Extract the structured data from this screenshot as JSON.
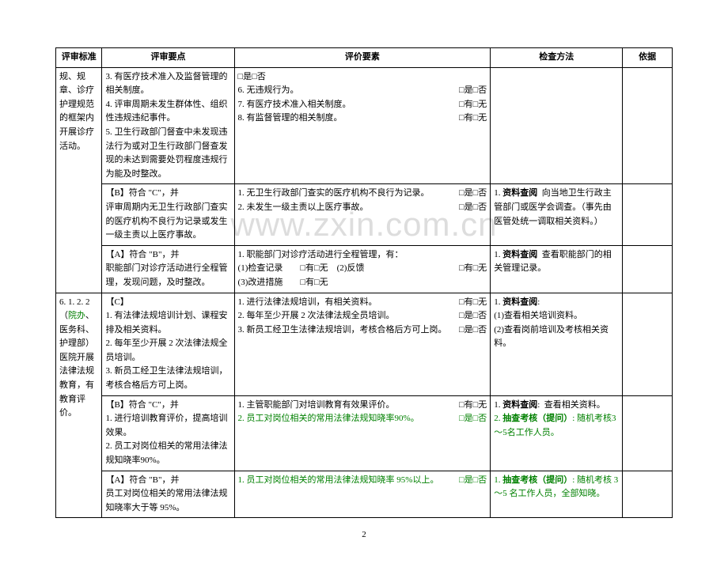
{
  "watermark": "www.zxin.com.cn",
  "page_number": "2",
  "headers": {
    "col1": "评审标准",
    "col2": "评审要点",
    "col3": "评价要素",
    "col4": "检查方法",
    "col5": "依据"
  },
  "rows": [
    {
      "std": "规、规章、诊疗护理规范的框架内开展诊疗活动。",
      "points": "3. 有医疗技术准入及监督管理的相关制度。\n4. 评审周期未发生群体性、组织性违规违纪事件。\n5. 卫生行政部门督查中未发现违法行为或对卫生行政部门督查发现的未达到需要处罚程度违规行为能及时整改。",
      "eval": [
        {
          "l": "□是□否",
          "r": ""
        },
        {
          "l": "6. 无违规行为。",
          "r": "□是□否"
        },
        {
          "l": "7. 有医疗技术准入相关制度。",
          "r": "□有□无"
        },
        {
          "l": "8. 有监督管理的相关制度。",
          "r": "□有□无"
        }
      ],
      "method": "",
      "basis": ""
    },
    {
      "std_merge": true,
      "points": "【B】符合 \"C\"，并\n评审周期内无卫生行政部门查实的医疗机构不良行为记录或发生一级主责以上医疗事故。",
      "eval": [
        {
          "l": "1. 无卫生行政部门查实的医疗机构不良行为记录。",
          "r": "□是□否"
        },
        {
          "l": "2. 未发生一级主责以上医疗事故。",
          "r": "□是□否"
        }
      ],
      "method": "1. 资料查阅  向当地卫生行政主管部门或医学会调查。（事先由医管处统一调取相关资料。）",
      "basis": ""
    },
    {
      "std_merge": true,
      "points": "【A】符合 \"B\"，并\n职能部门对诊疗活动进行全程管理，发现问题，及时整改。",
      "eval": [
        {
          "l": "1. 职能部门对诊疗活动进行全程管理，有：",
          "r": ""
        },
        {
          "l": "(1)检查记录　　□有□无　(2)反馈",
          "r": "□有□无"
        },
        {
          "l": "(3)改进措施　　□有□无",
          "r": ""
        }
      ],
      "method": "1. 资料查阅  查看职能部门的相关管理记录。",
      "basis": ""
    },
    {
      "std": "6. 1. 2. 2\n（院办、医务科、护理部）医院开展法律法规教育，有教育评价。",
      "std_green": "院办",
      "points": "【C】\n1. 有法律法规培训计划、课程安排及相关资料。\n2. 每年至少开展 2 次法律法规全员培训。\n3. 新员工经卫生法律法规培训，考核合格后方可上岗。",
      "eval": [
        {
          "l": "1. 进行法律法规培训，有相关资料。",
          "r": "□有□无"
        },
        {
          "l": "2. 每年至少开展 2 次法律法规全员培训。",
          "r": "□是□否"
        },
        {
          "l": "3. 新员工经卫生法律法规培训，考核合格后方可上岗。",
          "r": "□是□否"
        }
      ],
      "method": "1. 资料查阅:\n(1)查看相关培训资料。\n(2)查看岗前培训及考核相关资料。",
      "basis": ""
    },
    {
      "std_merge": true,
      "points": "【B】符合 \"C\"，并\n1. 进行培训教育评价，提高培训效果。\n2. 员工对岗位相关的常用法律法规知晓率90%。",
      "eval": [
        {
          "l": "1. 主管职能部门对培训教育有效果评价。",
          "r": "□有□无"
        },
        {
          "l": "2. 员工对岗位相关的常用法律法规知晓率90%。",
          "r": "□是□否",
          "green": true
        }
      ],
      "method": "1. 资料查阅:  查看相关资料。",
      "method_green": "2. 抽查考核（提问）: 随机考核3～5名工作人员。",
      "basis": ""
    },
    {
      "std_merge": true,
      "points": "【A】符合 \"B\"，并\n员工对岗位相关的常用法律法规知晓率大于等 95%。",
      "eval": [
        {
          "l": "1. 员工对岗位相关的常用法律法规知晓率 95%以上。",
          "r": "□是□否",
          "green": true
        }
      ],
      "method_green": "1. 抽查考核（提问）: 随机考核 3～5 名工作人员，全部知晓。",
      "basis": ""
    }
  ]
}
